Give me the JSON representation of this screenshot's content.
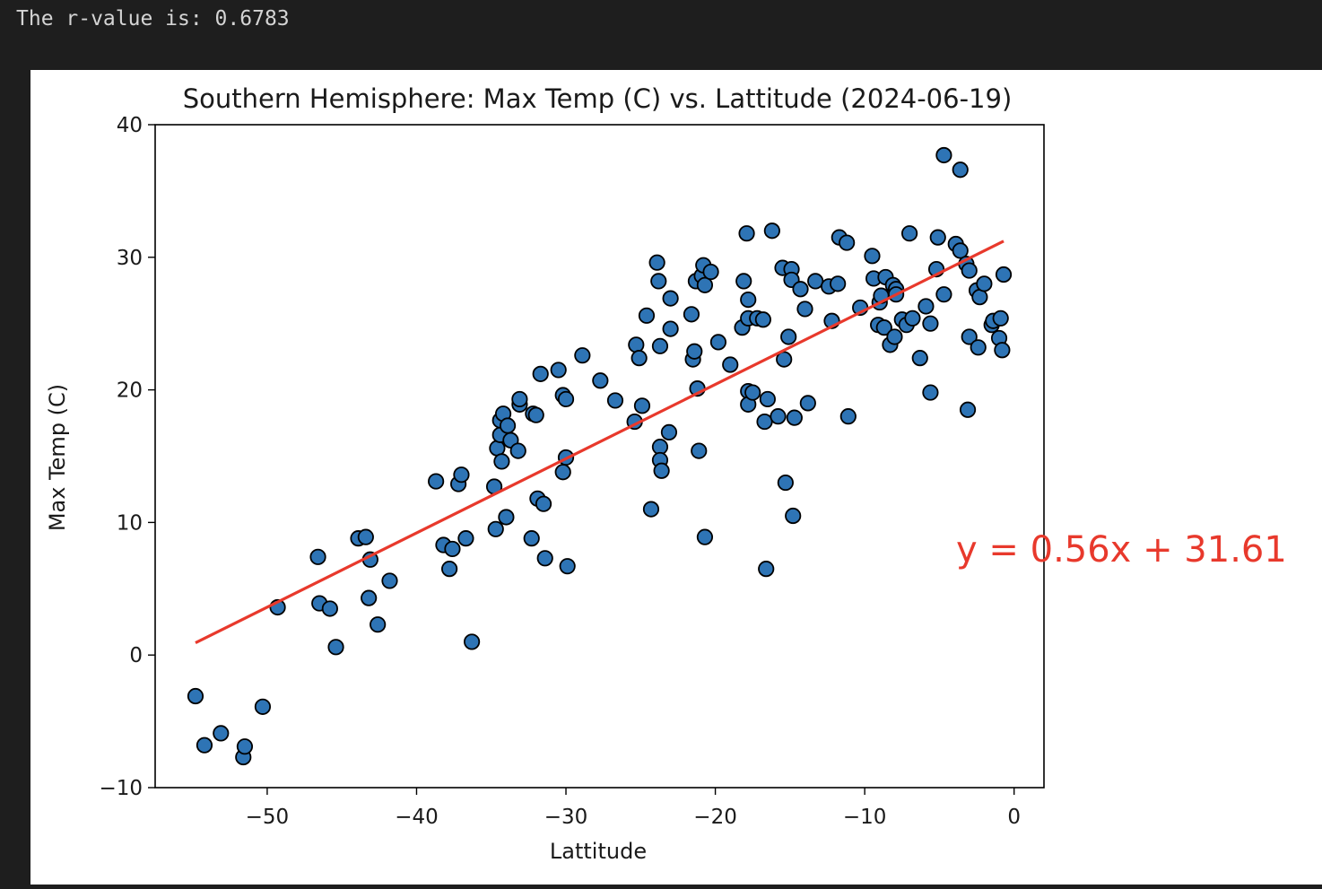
{
  "output": {
    "rvalue_text": "The r-value is: 0.6783"
  },
  "chart_data": {
    "type": "scatter",
    "title": "Southern Hemisphere: Max Temp (C) vs. Lattitude (2024-06-19)",
    "xlabel": "Lattitude",
    "ylabel": "Max Temp (C)",
    "xlim": [
      -57.5,
      2
    ],
    "ylim": [
      -10,
      40
    ],
    "xticks": [
      -50,
      -40,
      -30,
      -20,
      -10,
      0
    ],
    "yticks": [
      -10,
      0,
      10,
      20,
      30,
      40
    ],
    "xtick_labels": [
      "−50",
      "−40",
      "−30",
      "−20",
      "−10",
      "0"
    ],
    "ytick_labels": [
      "−10",
      "0",
      "10",
      "20",
      "30",
      "40"
    ],
    "grid": false,
    "marker_color": "#2e74b5",
    "marker_edge_color": "#000000",
    "line_color": "#e8392c",
    "regression": {
      "slope": 0.56,
      "intercept": 31.61,
      "x_range": [
        -54.8,
        -0.7
      ],
      "equation": "y = 0.56x + 31.61"
    },
    "points": [
      [
        -54.8,
        -3.1
      ],
      [
        -54.2,
        -6.8
      ],
      [
        -53.1,
        -5.9
      ],
      [
        -51.6,
        -7.7
      ],
      [
        -51.5,
        -6.9
      ],
      [
        -50.3,
        -3.9
      ],
      [
        -49.3,
        3.6
      ],
      [
        -46.6,
        7.4
      ],
      [
        -46.5,
        3.9
      ],
      [
        -45.8,
        3.5
      ],
      [
        -45.4,
        0.6
      ],
      [
        -43.9,
        8.8
      ],
      [
        -43.4,
        8.9
      ],
      [
        -43.1,
        7.2
      ],
      [
        -43.2,
        4.3
      ],
      [
        -42.6,
        2.3
      ],
      [
        -41.8,
        5.6
      ],
      [
        -38.7,
        13.1
      ],
      [
        -38.2,
        8.3
      ],
      [
        -37.8,
        6.5
      ],
      [
        -37.6,
        8.0
      ],
      [
        -37.2,
        12.9
      ],
      [
        -37.0,
        13.6
      ],
      [
        -36.7,
        8.8
      ],
      [
        -36.3,
        1.0
      ],
      [
        -34.8,
        12.7
      ],
      [
        -34.7,
        9.5
      ],
      [
        -34.6,
        15.6
      ],
      [
        -34.4,
        16.6
      ],
      [
        -34.4,
        17.7
      ],
      [
        -34.3,
        14.6
      ],
      [
        -34.2,
        18.2
      ],
      [
        -34.0,
        10.4
      ],
      [
        -33.9,
        17.3
      ],
      [
        -33.7,
        16.2
      ],
      [
        -33.2,
        15.4
      ],
      [
        -33.1,
        18.9
      ],
      [
        -33.1,
        19.3
      ],
      [
        -32.3,
        8.8
      ],
      [
        -32.2,
        18.2
      ],
      [
        -32.0,
        18.1
      ],
      [
        -31.9,
        11.8
      ],
      [
        -31.7,
        21.2
      ],
      [
        -31.5,
        11.4
      ],
      [
        -31.4,
        7.3
      ],
      [
        -30.5,
        21.5
      ],
      [
        -30.2,
        13.8
      ],
      [
        -30.2,
        19.6
      ],
      [
        -30.0,
        19.3
      ],
      [
        -30.0,
        14.9
      ],
      [
        -29.9,
        6.7
      ],
      [
        -28.9,
        22.6
      ],
      [
        -27.7,
        20.7
      ],
      [
        -26.7,
        19.2
      ],
      [
        -25.4,
        17.6
      ],
      [
        -25.3,
        23.4
      ],
      [
        -25.1,
        22.4
      ],
      [
        -24.9,
        18.8
      ],
      [
        -24.6,
        25.6
      ],
      [
        -24.3,
        11.0
      ],
      [
        -23.9,
        29.6
      ],
      [
        -23.8,
        28.2
      ],
      [
        -23.7,
        23.3
      ],
      [
        -23.7,
        15.7
      ],
      [
        -23.7,
        14.7
      ],
      [
        -23.6,
        13.9
      ],
      [
        -23.1,
        16.8
      ],
      [
        -23.0,
        26.9
      ],
      [
        -23.0,
        24.6
      ],
      [
        -21.6,
        25.7
      ],
      [
        -21.5,
        22.3
      ],
      [
        -21.4,
        22.9
      ],
      [
        -21.3,
        28.2
      ],
      [
        -21.2,
        20.1
      ],
      [
        -21.1,
        15.4
      ],
      [
        -20.9,
        28.6
      ],
      [
        -20.8,
        29.4
      ],
      [
        -20.7,
        27.9
      ],
      [
        -20.7,
        8.9
      ],
      [
        -20.3,
        28.9
      ],
      [
        -19.8,
        23.6
      ],
      [
        -19.0,
        21.9
      ],
      [
        -18.2,
        24.7
      ],
      [
        -18.1,
        28.2
      ],
      [
        -17.9,
        31.8
      ],
      [
        -17.8,
        25.4
      ],
      [
        -17.8,
        26.8
      ],
      [
        -17.8,
        19.9
      ],
      [
        -17.8,
        18.9
      ],
      [
        -17.5,
        19.8
      ],
      [
        -17.2,
        25.4
      ],
      [
        -16.8,
        25.3
      ],
      [
        -16.7,
        17.6
      ],
      [
        -16.6,
        6.5
      ],
      [
        -16.5,
        19.3
      ],
      [
        -16.2,
        32.0
      ],
      [
        -15.8,
        18.0
      ],
      [
        -15.5,
        29.2
      ],
      [
        -15.4,
        22.3
      ],
      [
        -15.3,
        13.0
      ],
      [
        -15.1,
        24.0
      ],
      [
        -14.9,
        29.1
      ],
      [
        -14.9,
        28.3
      ],
      [
        -14.8,
        10.5
      ],
      [
        -14.7,
        17.9
      ],
      [
        -14.3,
        27.6
      ],
      [
        -14.0,
        26.1
      ],
      [
        -13.8,
        19.0
      ],
      [
        -13.3,
        28.2
      ],
      [
        -12.4,
        27.8
      ],
      [
        -12.2,
        25.2
      ],
      [
        -11.8,
        28.0
      ],
      [
        -11.7,
        31.5
      ],
      [
        -11.2,
        31.1
      ],
      [
        -11.1,
        18.0
      ],
      [
        -10.3,
        26.2
      ],
      [
        -9.5,
        30.1
      ],
      [
        -9.4,
        28.4
      ],
      [
        -9.1,
        24.9
      ],
      [
        -9.0,
        26.6
      ],
      [
        -8.9,
        27.1
      ],
      [
        -8.7,
        24.7
      ],
      [
        -8.6,
        28.5
      ],
      [
        -8.3,
        23.4
      ],
      [
        -8.1,
        27.9
      ],
      [
        -8.0,
        24.0
      ],
      [
        -7.9,
        27.6
      ],
      [
        -7.9,
        27.2
      ],
      [
        -7.5,
        25.3
      ],
      [
        -7.2,
        24.9
      ],
      [
        -7.0,
        31.8
      ],
      [
        -6.8,
        25.4
      ],
      [
        -6.3,
        22.4
      ],
      [
        -5.9,
        26.3
      ],
      [
        -5.6,
        25.0
      ],
      [
        -5.6,
        19.8
      ],
      [
        -5.2,
        29.1
      ],
      [
        -5.1,
        31.5
      ],
      [
        -4.7,
        27.2
      ],
      [
        -4.7,
        37.7
      ],
      [
        -3.9,
        31.0
      ],
      [
        -3.6,
        30.5
      ],
      [
        -3.6,
        36.6
      ],
      [
        -3.2,
        29.5
      ],
      [
        -3.1,
        18.5
      ],
      [
        -3.0,
        24.0
      ],
      [
        -3.0,
        29.0
      ],
      [
        -2.5,
        27.5
      ],
      [
        -2.4,
        23.2
      ],
      [
        -2.3,
        27.0
      ],
      [
        -2.0,
        28.0
      ],
      [
        -1.5,
        24.9
      ],
      [
        -1.4,
        25.2
      ],
      [
        -1.0,
        23.9
      ],
      [
        -0.9,
        25.4
      ],
      [
        -0.8,
        23.0
      ],
      [
        -0.7,
        28.7
      ]
    ]
  }
}
